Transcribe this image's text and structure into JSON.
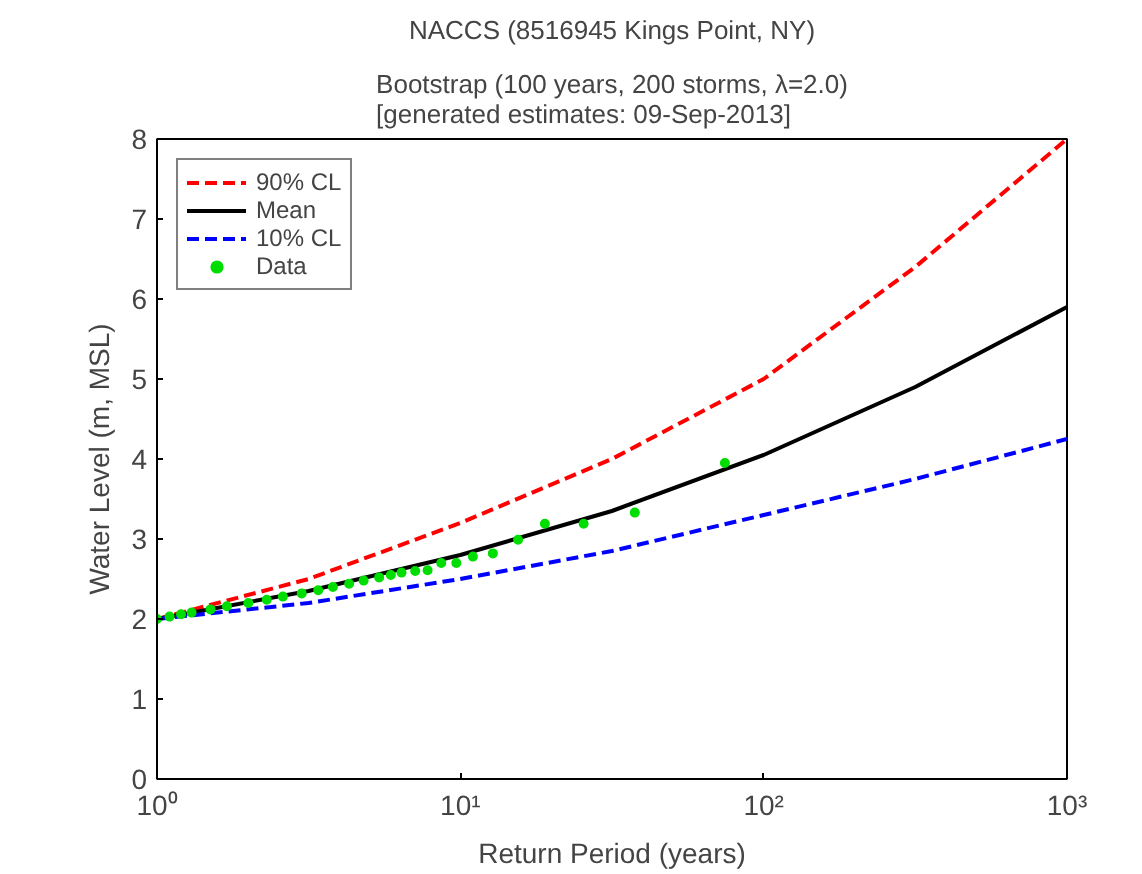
{
  "chart_data": {
    "type": "line",
    "title": "NACCS (8516945 Kings Point, NY)",
    "subtitle": "Bootstrap (100 years, 200 storms, λ=2.0)\n[generated estimates: 09-Sep-2013]",
    "xlabel": "Return Period (years)",
    "ylabel": "Water Level (m, MSL)",
    "log": "x",
    "grid": false,
    "legend": "top left",
    "xlim": [
      1,
      1000
    ],
    "xticks": [
      {
        "value": 1,
        "label": "10⁰"
      },
      {
        "value": 10,
        "label": "10¹"
      },
      {
        "value": 100,
        "label": "10²"
      },
      {
        "value": 1000,
        "label": "10³"
      }
    ],
    "ylim": [
      0,
      8
    ],
    "yticks": [
      0,
      1,
      2,
      3,
      4,
      5,
      6,
      7,
      8
    ],
    "series": [
      {
        "name": "90% CL",
        "line_style": "dashed",
        "color": "#ff0000",
        "x": [
          1,
          3.16,
          10,
          31.6,
          100,
          316,
          1000
        ],
        "values": [
          2.0,
          2.5,
          3.2,
          4.0,
          5.0,
          6.4,
          8.0
        ]
      },
      {
        "name": "Mean",
        "line_style": "solid",
        "color": "#000000",
        "x": [
          1,
          3.16,
          10,
          31.6,
          100,
          316,
          1000
        ],
        "values": [
          2.0,
          2.35,
          2.8,
          3.35,
          4.05,
          4.9,
          5.9
        ]
      },
      {
        "name": "10% CL",
        "line_style": "dashed",
        "color": "#0000ff",
        "x": [
          1,
          3.16,
          10,
          31.6,
          100,
          316,
          1000
        ],
        "values": [
          2.0,
          2.2,
          2.5,
          2.85,
          3.3,
          3.75,
          4.25
        ]
      },
      {
        "name": "Data",
        "type": "scatter",
        "marker": "circle",
        "color": "#00dd00",
        "x": [
          1.0,
          1.1,
          1.2,
          1.3,
          1.5,
          1.7,
          2.0,
          2.3,
          2.6,
          3.0,
          3.4,
          3.8,
          4.3,
          4.8,
          5.4,
          5.9,
          6.4,
          7.1,
          7.8,
          8.65,
          9.7,
          11.0,
          12.8,
          15.5,
          19,
          25.5,
          37.6,
          74.5
        ],
        "values": [
          2.0,
          2.03,
          2.06,
          2.08,
          2.12,
          2.16,
          2.2,
          2.24,
          2.28,
          2.32,
          2.36,
          2.4,
          2.44,
          2.48,
          2.52,
          2.55,
          2.58,
          2.6,
          2.61,
          2.7,
          2.7,
          2.78,
          2.82,
          2.99,
          3.19,
          3.19,
          3.33,
          3.95
        ]
      }
    ]
  }
}
